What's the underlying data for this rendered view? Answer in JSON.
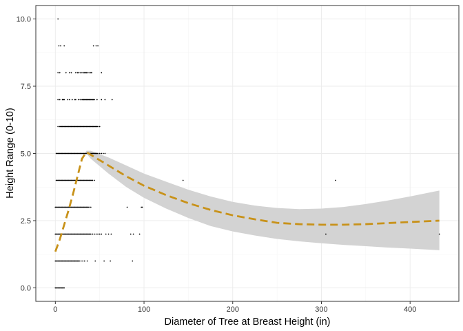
{
  "chart_data": {
    "type": "scatter",
    "title": "",
    "xlabel": "Diameter of Tree at Breast Height (in)",
    "ylabel": "Height Range (0-10)",
    "xlim": [
      -22,
      455
    ],
    "ylim": [
      -0.5,
      10.5
    ],
    "x_ticks": [
      0,
      100,
      200,
      300,
      400
    ],
    "y_ticks": [
      0.0,
      2.5,
      5.0,
      7.5,
      10.0
    ],
    "x_tick_labels": [
      "0",
      "100",
      "200",
      "300",
      "400"
    ],
    "y_tick_labels": [
      "0.0",
      "2.5",
      "5.0",
      "7.5",
      "10.0"
    ],
    "grid": true,
    "theme": "bw",
    "points": [
      {
        "y": 0,
        "x": [
          0,
          1,
          2,
          3,
          4,
          5,
          6,
          7,
          8,
          9,
          10
        ]
      },
      {
        "y": 1,
        "x": [
          0,
          1,
          2,
          3,
          4,
          5,
          6,
          7,
          8,
          9,
          10,
          11,
          12,
          13,
          14,
          15,
          16,
          17,
          18,
          19,
          20,
          21,
          22,
          23,
          24,
          25,
          26,
          27,
          29,
          31,
          33,
          36,
          45,
          55,
          62,
          87
        ]
      },
      {
        "y": 2,
        "x": [
          0,
          1,
          2,
          3,
          4,
          5,
          6,
          7,
          8,
          9,
          10,
          11,
          12,
          13,
          14,
          15,
          16,
          17,
          18,
          19,
          20,
          21,
          22,
          23,
          24,
          25,
          26,
          27,
          28,
          29,
          30,
          31,
          32,
          33,
          34,
          35,
          36,
          37,
          38,
          39,
          40,
          42,
          44,
          46,
          48,
          50,
          52,
          57,
          60,
          63,
          85,
          88,
          95,
          305,
          433
        ]
      },
      {
        "y": 3,
        "x": [
          0,
          1,
          2,
          3,
          4,
          5,
          6,
          7,
          8,
          9,
          10,
          11,
          12,
          13,
          14,
          15,
          16,
          17,
          18,
          19,
          20,
          21,
          22,
          23,
          24,
          25,
          26,
          27,
          28,
          29,
          30,
          31,
          32,
          33,
          34,
          35,
          36,
          37,
          38,
          40,
          81,
          97,
          98
        ]
      },
      {
        "y": 4,
        "x": [
          1,
          2,
          3,
          4,
          5,
          6,
          7,
          8,
          9,
          10,
          11,
          12,
          13,
          14,
          15,
          16,
          17,
          18,
          19,
          20,
          21,
          22,
          23,
          24,
          25,
          26,
          27,
          28,
          29,
          30,
          31,
          32,
          33,
          34,
          35,
          36,
          37,
          38,
          39,
          40,
          41,
          42,
          44,
          144,
          316
        ]
      },
      {
        "y": 5,
        "x": [
          1,
          2,
          3,
          4,
          5,
          6,
          7,
          8,
          9,
          10,
          11,
          12,
          13,
          14,
          15,
          16,
          17,
          18,
          19,
          20,
          21,
          22,
          23,
          24,
          25,
          26,
          27,
          28,
          29,
          30,
          31,
          32,
          33,
          34,
          35,
          36,
          37,
          38,
          39,
          40,
          41,
          42,
          43,
          44,
          45,
          46,
          47,
          48,
          50,
          52,
          54,
          56
        ]
      },
      {
        "y": 6,
        "x": [
          3,
          5,
          6,
          7,
          8,
          9,
          10,
          11,
          12,
          13,
          14,
          15,
          16,
          17,
          18,
          19,
          20,
          21,
          22,
          23,
          24,
          25,
          26,
          27,
          28,
          29,
          30,
          31,
          32,
          33,
          34,
          35,
          36,
          37,
          38,
          39,
          40,
          41,
          42,
          43,
          44,
          45,
          46,
          47,
          48,
          50
        ]
      },
      {
        "y": 7,
        "x": [
          3,
          5,
          8,
          9,
          10,
          14,
          16,
          19,
          22,
          23,
          26,
          28,
          30,
          31,
          32,
          33,
          34,
          35,
          36,
          37,
          38,
          39,
          40,
          41,
          42,
          43,
          44,
          47,
          52,
          56,
          64
        ]
      },
      {
        "y": 8,
        "x": [
          3,
          5,
          12,
          16,
          18,
          23,
          25,
          26,
          28,
          30,
          32,
          33,
          34,
          35,
          36,
          38,
          40,
          41,
          52
        ]
      },
      {
        "y": 9,
        "x": [
          4,
          6,
          10,
          43,
          46,
          48
        ]
      },
      {
        "y": 10,
        "x": [
          3
        ]
      }
    ],
    "smooth": {
      "color": "#C8921A",
      "linetype": "dashed",
      "band_color": "#D3D3D3",
      "x": [
        0,
        5,
        10,
        15,
        20,
        25,
        30,
        35,
        40,
        60,
        80,
        100,
        125,
        150,
        175,
        200,
        225,
        250,
        275,
        300,
        325,
        350,
        375,
        400,
        433
      ],
      "y": [
        1.35,
        1.8,
        2.35,
        2.9,
        3.5,
        4.15,
        4.8,
        5.05,
        4.95,
        4.55,
        4.15,
        3.8,
        3.45,
        3.15,
        2.9,
        2.7,
        2.55,
        2.42,
        2.37,
        2.35,
        2.35,
        2.37,
        2.41,
        2.45,
        2.5
      ],
      "lower": [
        1.35,
        1.8,
        2.35,
        2.9,
        3.5,
        4.15,
        4.8,
        5.0,
        4.8,
        4.25,
        3.75,
        3.35,
        2.95,
        2.6,
        2.3,
        2.1,
        1.95,
        1.82,
        1.73,
        1.66,
        1.6,
        1.55,
        1.5,
        1.46,
        1.4
      ],
      "upper": [
        1.35,
        1.8,
        2.35,
        2.9,
        3.5,
        4.15,
        4.8,
        5.1,
        5.1,
        4.85,
        4.55,
        4.25,
        3.95,
        3.65,
        3.4,
        3.2,
        3.06,
        2.97,
        2.93,
        2.95,
        3.01,
        3.12,
        3.25,
        3.4,
        3.62
      ]
    }
  }
}
